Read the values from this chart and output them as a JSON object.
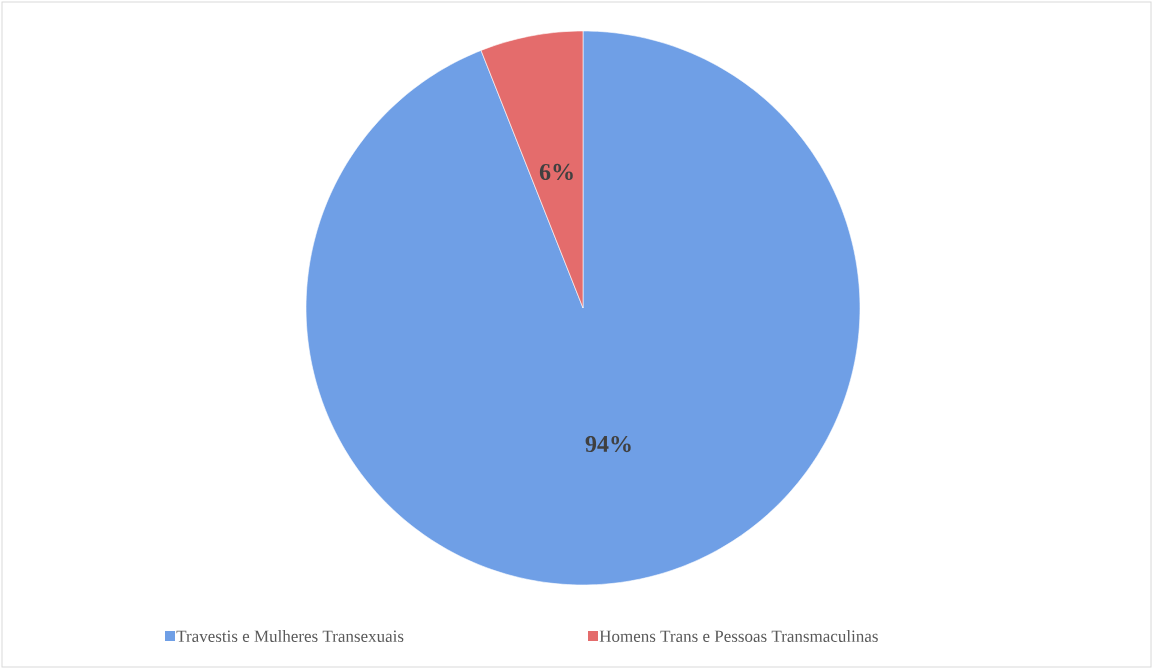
{
  "chart_data": {
    "type": "pie",
    "categories": [
      "Travestis e Mulheres Transexuais",
      "Homens Trans e Pessoas Transmaculinas"
    ],
    "values": [
      94,
      6
    ],
    "colors": [
      "#6f9fe6",
      "#e46c6c"
    ],
    "data_labels": true,
    "value_labels": [
      "94%",
      "6%"
    ],
    "legend": "bottom"
  }
}
